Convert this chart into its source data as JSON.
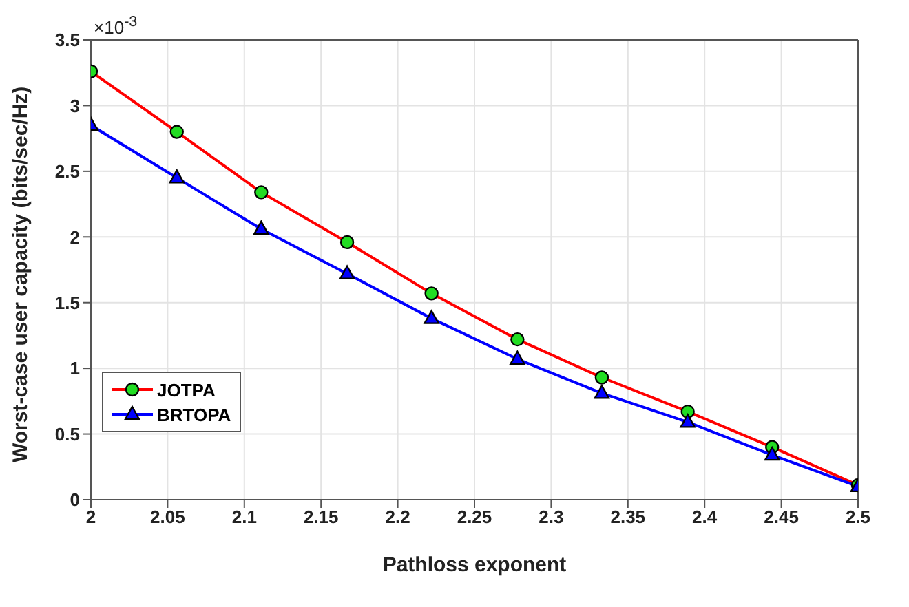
{
  "chart_data": {
    "type": "line",
    "xlabel": "Pathloss exponent",
    "ylabel": "Worst-case user capacity (bits/sec/Hz)",
    "annotations": [
      "×10$^{-3}$"
    ],
    "x": [
      2,
      2.056,
      2.111,
      2.167,
      2.222,
      2.278,
      2.333,
      2.389,
      2.444,
      2.5
    ],
    "series": [
      {
        "name": "JOTPA",
        "color": "#ff0000",
        "marker": "circle",
        "values": [
          3.26,
          2.8,
          2.34,
          1.96,
          1.57,
          1.22,
          0.93,
          0.67,
          0.4,
          0.11
        ]
      },
      {
        "name": "BRTOPA",
        "color": "#0000ff",
        "marker": "triangle",
        "values": [
          2.85,
          2.45,
          2.06,
          1.72,
          1.38,
          1.07,
          0.81,
          0.59,
          0.34,
          0.1
        ]
      }
    ],
    "xlim": [
      2,
      2.5
    ],
    "xticks": [
      2,
      2.05,
      2.1,
      2.15,
      2.2,
      2.25,
      2.3,
      2.35,
      2.4,
      2.45,
      2.5
    ],
    "ylim": [
      0,
      3.5
    ],
    "yticks": [
      0,
      0.5,
      1,
      1.5,
      2,
      2.5,
      3,
      3.5
    ],
    "grid": true,
    "legend": "bottom left"
  }
}
